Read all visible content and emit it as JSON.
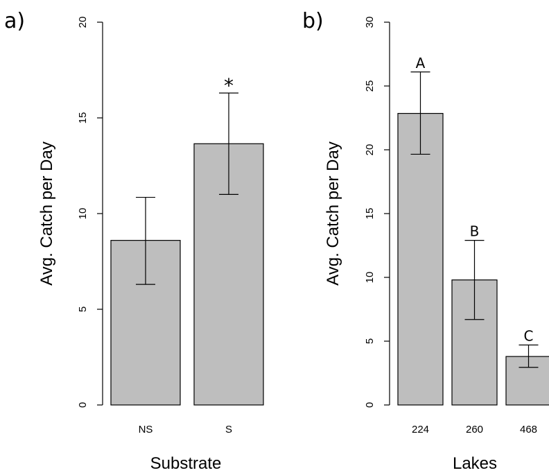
{
  "chart_data": [
    {
      "panel_label": "a)",
      "type": "bar",
      "categories": [
        "NS",
        "S"
      ],
      "values": [
        8.6,
        13.65
      ],
      "error_lower": [
        6.3,
        11.0
      ],
      "error_upper": [
        10.85,
        16.3
      ],
      "annotations": [
        "",
        "*"
      ],
      "xlabel": "Substrate",
      "ylabel": "Avg. Catch per Day",
      "ylim": [
        0,
        20
      ],
      "yticks": [
        0,
        5,
        10,
        15,
        20
      ],
      "bar_color": "#bebebe",
      "grid": false
    },
    {
      "panel_label": "b)",
      "type": "bar",
      "categories": [
        "224",
        "260",
        "468"
      ],
      "values": [
        22.85,
        9.8,
        3.8
      ],
      "error_lower": [
        19.65,
        6.7,
        2.95
      ],
      "error_upper": [
        26.1,
        12.9,
        4.7
      ],
      "annotations": [
        "A",
        "B",
        "C"
      ],
      "xlabel": "Lakes",
      "ylabel": "Avg. Catch per Day",
      "ylim": [
        0,
        30
      ],
      "yticks": [
        0,
        5,
        10,
        15,
        20,
        25,
        30
      ],
      "bar_color": "#bebebe",
      "grid": false
    }
  ]
}
